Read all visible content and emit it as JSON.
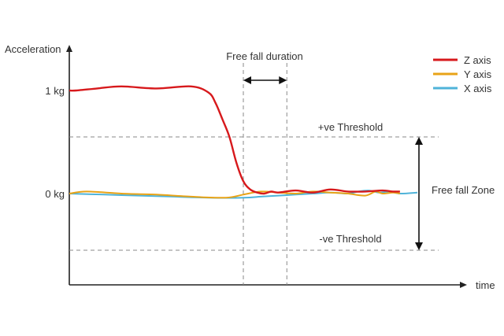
{
  "colors": {
    "z": "#d7191c",
    "y": "#e8a317",
    "x": "#4fb3d9",
    "axis": "#222222",
    "guide": "#8a8a8a",
    "text": "#333333"
  },
  "chart_data": {
    "type": "line",
    "title": "",
    "ylabel": "Acceleration",
    "xlabel": "time",
    "yticks": [
      {
        "value": 1,
        "label": "1 kg"
      },
      {
        "value": 0,
        "label": "0 kg"
      }
    ],
    "ylim": [
      -0.88,
      1.4
    ],
    "xlim": [
      0,
      1
    ],
    "grid": false,
    "legend": {
      "position": "top-right"
    },
    "series": [
      {
        "name": "Z axis",
        "color": "#d7191c",
        "x": [
          0,
          0.02,
          0.08,
          0.15,
          0.25,
          0.35,
          0.4,
          0.42,
          0.44,
          0.46,
          0.48,
          0.5,
          0.52,
          0.54,
          0.56,
          0.58,
          0.6,
          0.65,
          0.7,
          0.75,
          0.8,
          0.85,
          0.9,
          0.93,
          0.95
        ],
        "y": [
          1.0,
          1.0,
          1.02,
          1.04,
          1.02,
          1.04,
          0.98,
          0.88,
          0.72,
          0.55,
          0.3,
          0.12,
          0.04,
          0.01,
          0.0,
          0.02,
          0.01,
          0.03,
          0.01,
          0.04,
          0.02,
          0.02,
          0.03,
          0.02,
          0.02
        ]
      },
      {
        "name": "Y axis",
        "color": "#e8a317",
        "x": [
          0,
          0.05,
          0.15,
          0.25,
          0.35,
          0.45,
          0.5,
          0.55,
          0.6,
          0.65,
          0.7,
          0.75,
          0.8,
          0.85,
          0.88,
          0.9,
          0.93,
          0.95
        ],
        "y": [
          0.0,
          0.02,
          0.0,
          -0.01,
          -0.03,
          -0.04,
          -0.01,
          0.02,
          0.01,
          0.0,
          0.02,
          0.01,
          0.0,
          -0.02,
          0.02,
          0.0,
          0.01,
          0.0
        ]
      },
      {
        "name": "X axis",
        "color": "#4fb3d9",
        "x": [
          0,
          0.1,
          0.2,
          0.3,
          0.4,
          0.5,
          0.55,
          0.6,
          0.65,
          0.7,
          0.75,
          0.8,
          0.83,
          0.86,
          0.89,
          0.92,
          0.95,
          1.0
        ],
        "y": [
          0.0,
          -0.01,
          -0.02,
          -0.03,
          -0.04,
          -0.04,
          -0.03,
          -0.02,
          -0.01,
          0.0,
          0.01,
          0.0,
          0.02,
          0.03,
          0.01,
          0.02,
          0.0,
          0.01
        ]
      }
    ],
    "thresholds": [
      {
        "label": "+ve Threshold",
        "value": 0.55
      },
      {
        "label": "-ve Threshold",
        "value": -0.55
      }
    ],
    "annotations": {
      "free_fall_duration": {
        "label": "Free fall duration",
        "start": 0.5,
        "end": 0.625
      },
      "free_fall_zone": {
        "label": "Free fall Zone"
      }
    }
  }
}
